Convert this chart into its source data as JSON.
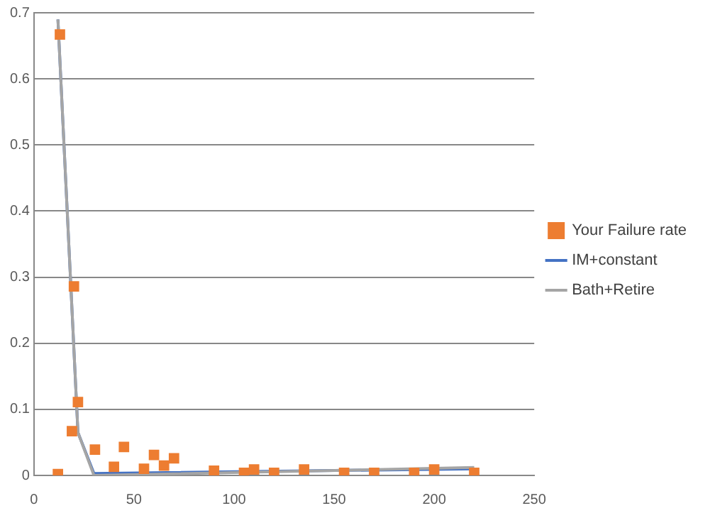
{
  "chart_data": {
    "type": "scatter",
    "xlim": [
      0,
      250
    ],
    "xticks": [
      0,
      50,
      100,
      150,
      200,
      250
    ],
    "ylim": [
      0,
      0.7
    ],
    "yticks": [
      0,
      0.1,
      0.2,
      0.3,
      0.4,
      0.5,
      0.6,
      0.7
    ],
    "grid": "y",
    "legend": "right",
    "series": [
      {
        "name": "Your Failure rate",
        "marker": "square",
        "color": "#ed7d31",
        "x": [
          12,
          13,
          19,
          20,
          22,
          30.5,
          40,
          45,
          55,
          60,
          65,
          70,
          90,
          105,
          110,
          120,
          135,
          155,
          170,
          190,
          200,
          220
        ],
        "values": [
          0.002,
          0.667,
          0.067,
          0.286,
          0.111,
          0.039,
          0.013,
          0.043,
          0.01,
          0.031,
          0.015,
          0.026,
          0.007,
          0.004,
          0.009,
          0.004,
          0.009,
          0.004,
          0.004,
          0.004,
          0.009,
          0.004
        ]
      },
      {
        "name": "IM+constant",
        "type": "line",
        "marker": "none",
        "color": "#4472c4",
        "x": [
          12,
          22,
          30,
          220
        ],
        "values": [
          0.69,
          0.065,
          0.003,
          0.01
        ]
      },
      {
        "name": "Bath+Retire",
        "type": "line",
        "marker": "none",
        "color": "#a5a5a5",
        "x": [
          12,
          22,
          30,
          220
        ],
        "values": [
          0.69,
          0.065,
          0,
          0.012
        ]
      }
    ]
  }
}
